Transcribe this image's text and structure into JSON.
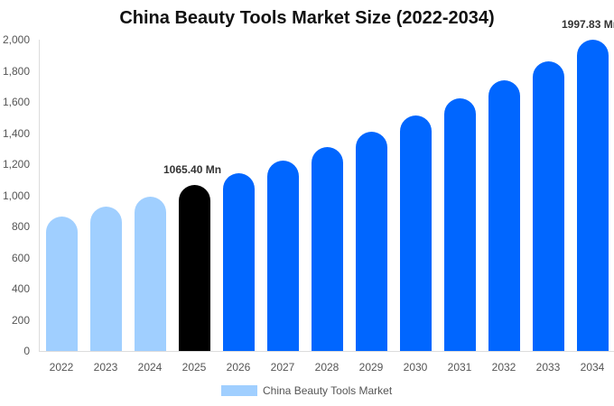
{
  "title": "China Beauty Tools Market Size (2022-2034)",
  "colors": {
    "historical": "#a0cfff",
    "current": "#000000",
    "forecast": "#0066ff"
  },
  "legend": {
    "label": "China Beauty Tools Market",
    "color": "#a0cfff"
  },
  "annotations": [
    {
      "year": "2025",
      "text": "1065.40 Mn"
    },
    {
      "year": "2034",
      "text": "1997.83 Mn"
    }
  ],
  "chart_data": {
    "type": "bar",
    "title": "China Beauty Tools Market Size (2022-2034)",
    "xlabel": "",
    "ylabel": "",
    "ylim": [
      0,
      2000
    ],
    "yticks": [
      "0",
      "200",
      "400",
      "600",
      "800",
      "1,000",
      "1,200",
      "1,400",
      "1,600",
      "1,800",
      "2,000"
    ],
    "grid": false,
    "legend_position": "bottom",
    "categories": [
      "2022",
      "2023",
      "2024",
      "2025",
      "2026",
      "2027",
      "2028",
      "2029",
      "2030",
      "2031",
      "2032",
      "2033",
      "2034"
    ],
    "series": [
      {
        "name": "China Beauty Tools Market",
        "values": [
          864,
          928,
          991,
          1065.4,
          1142,
          1226,
          1312,
          1409,
          1513,
          1623,
          1739,
          1862,
          1997.83
        ]
      }
    ],
    "bar_styles": [
      "historical",
      "historical",
      "historical",
      "current",
      "forecast",
      "forecast",
      "forecast",
      "forecast",
      "forecast",
      "forecast",
      "forecast",
      "forecast",
      "forecast"
    ],
    "data_labels": {
      "2025": "1065.40 Mn",
      "2034": "1997.83 Mn"
    }
  }
}
